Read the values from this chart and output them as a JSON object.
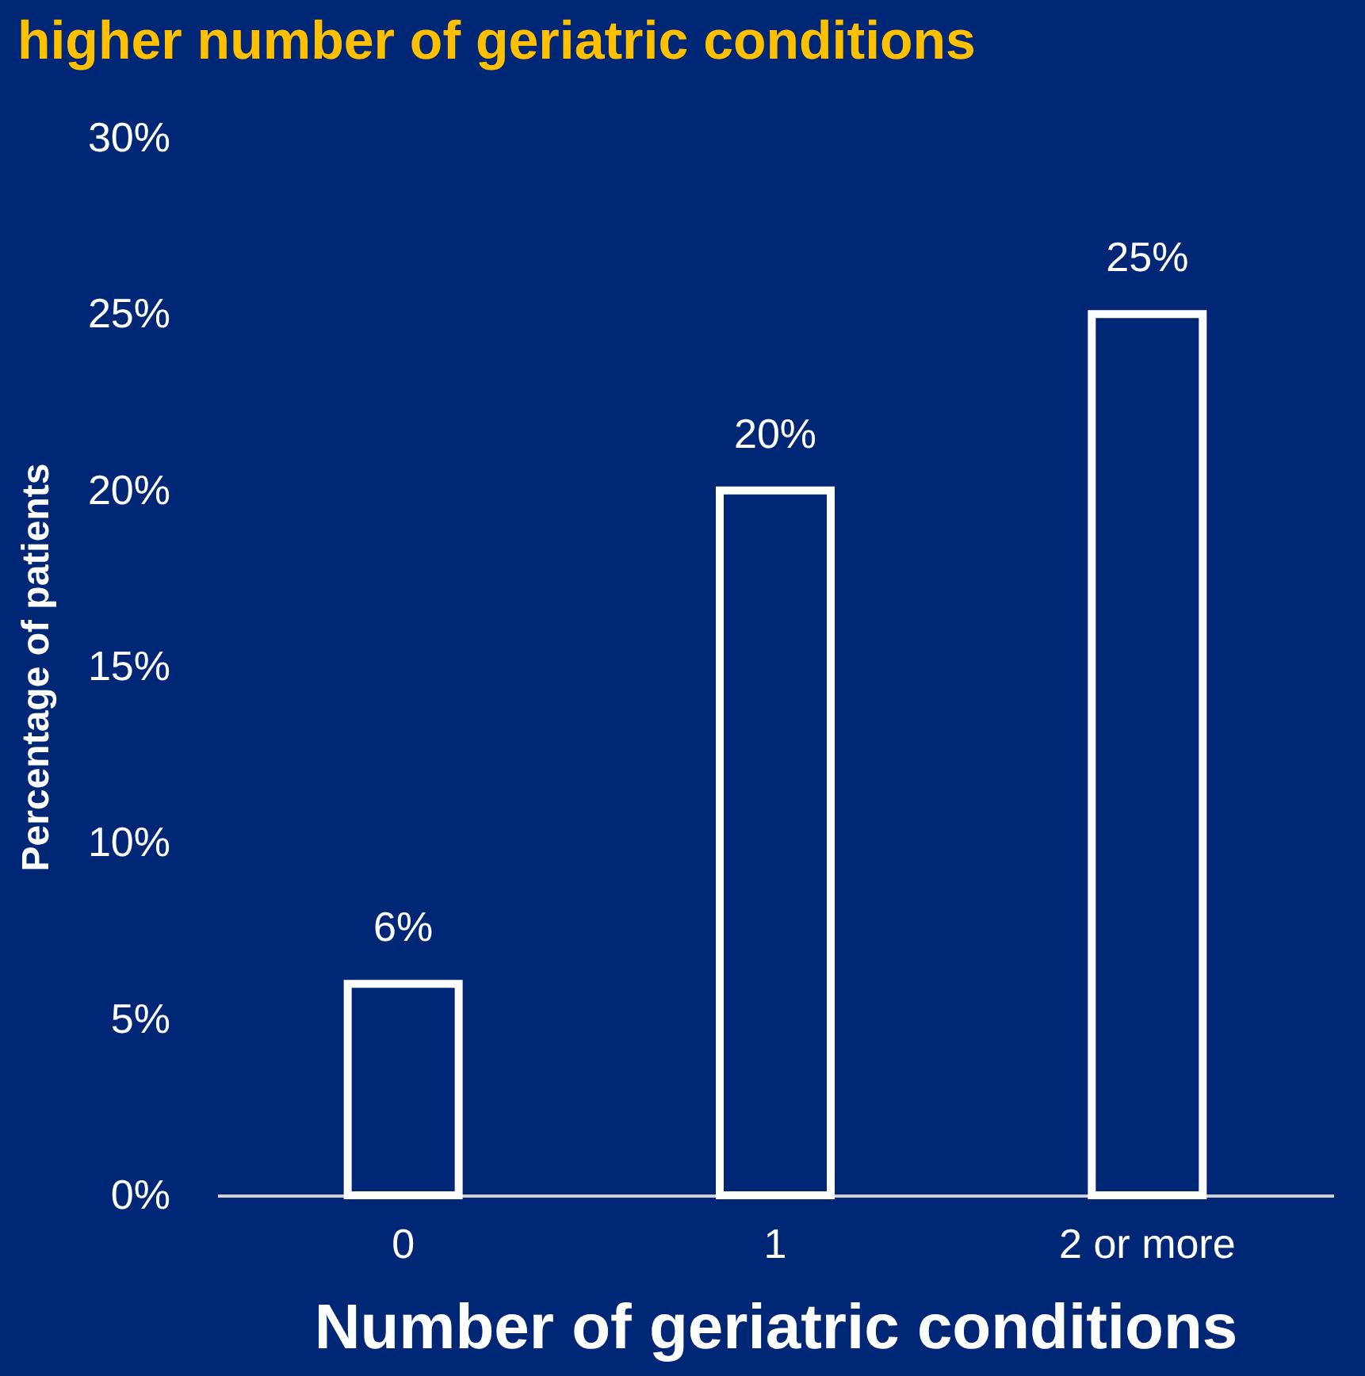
{
  "chart_data": {
    "type": "bar",
    "title": "higher number of geriatric conditions",
    "xlabel": "Number of geriatric conditions",
    "ylabel": "Percentage of patients",
    "categories": [
      "0",
      "1",
      "2 or more"
    ],
    "values": [
      6,
      20,
      25
    ],
    "color": "#ffffff",
    "value_labels": [
      "6%",
      "20%",
      "25%"
    ],
    "ylim": [
      0,
      30
    ],
    "yticks": [
      {
        "value": 0,
        "label": "0%"
      },
      {
        "value": 5,
        "label": "5%"
      },
      {
        "value": 10,
        "label": "10%"
      },
      {
        "value": 15,
        "label": "15%"
      },
      {
        "value": 20,
        "label": "20%"
      },
      {
        "value": 25,
        "label": "25%"
      },
      {
        "value": 30,
        "label": "30%"
      }
    ],
    "grid": false
  }
}
